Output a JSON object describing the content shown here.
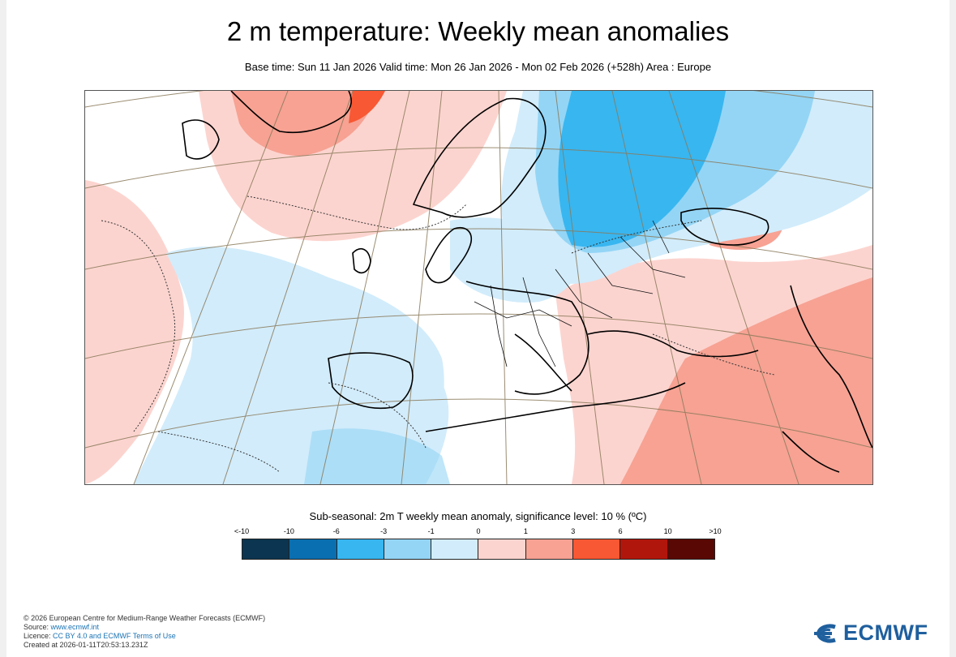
{
  "header": {
    "title": "2 m temperature: Weekly mean anomalies",
    "subtitle": "Base time: Sun 11 Jan 2026 Valid time: Mon 26 Jan 2026 - Mon 02 Feb 2026 (+528h) Area : Europe"
  },
  "legend": {
    "title": "Sub-seasonal: 2m T weekly mean anomaly, significance level: 10 % (ºC)",
    "ticks": [
      "<-10",
      "-10",
      "-6",
      "-3",
      "-1",
      "0",
      "1",
      "3",
      "6",
      "10",
      ">10"
    ],
    "colors": [
      "#0b3550",
      "#0a6fb0",
      "#38b6f0",
      "#94d5f5",
      "#d2ecfb",
      "#fcd4cf",
      "#f7a293",
      "#f85833",
      "#b1160c",
      "#5a0804"
    ]
  },
  "footer": {
    "copyright": "© 2026 European Centre for Medium-Range Weather Forecasts (ECMWF)",
    "source_label": "Source: ",
    "source_link": "www.ecmwf.int",
    "licence_label": "Licence: ",
    "licence_link": "CC BY 4.0 and ECMWF Terms of Use",
    "created": "Created at 2026-01-11T20:53:13.231Z"
  },
  "logo": {
    "text": "ECMWF"
  },
  "map_colors": {
    "very_light_blue": "#d2ecfb",
    "light_blue": "#94d5f5",
    "mid_blue": "#38b6f0",
    "light_red": "#fcd4cf",
    "mid_red": "#f7a293",
    "strong_red": "#f85833"
  }
}
